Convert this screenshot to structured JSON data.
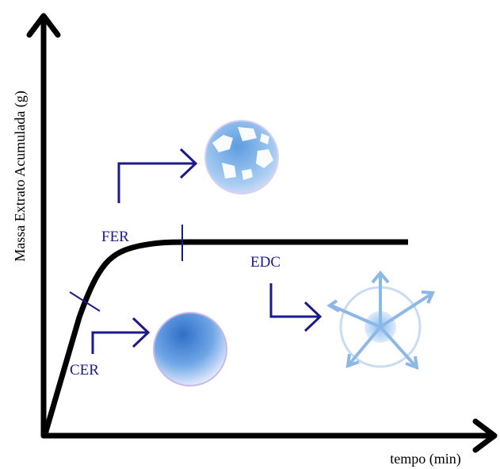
{
  "axes": {
    "y_label": "Massa Extrato Acumulada (g)",
    "x_label": "tempo (min)"
  },
  "stages": [
    {
      "label": "FER"
    },
    {
      "label": "CER"
    },
    {
      "label": "EDC"
    }
  ]
}
